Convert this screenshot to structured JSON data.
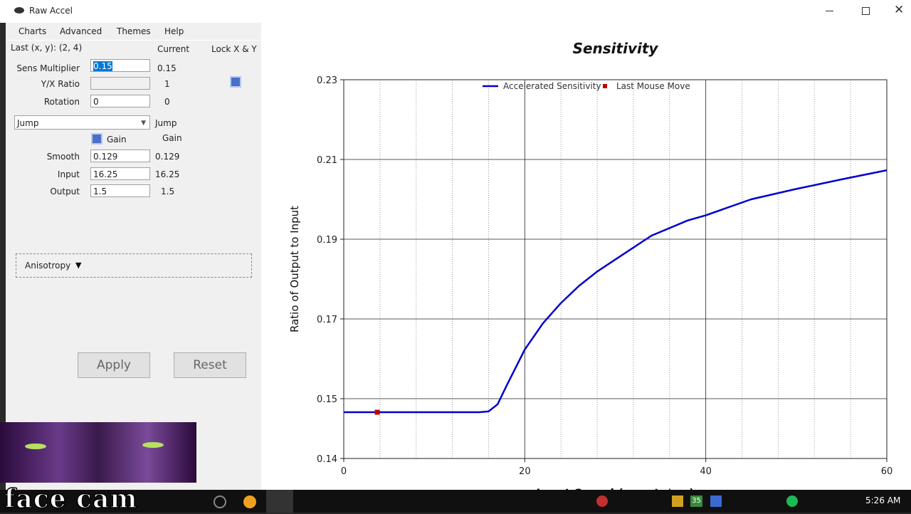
{
  "window": {
    "title": "Raw Accel"
  },
  "menu": [
    "Charts",
    "Advanced",
    "Themes",
    "Help"
  ],
  "panel": {
    "last_move": "Last (x, y): (2, 4)",
    "current_header": "Current",
    "lock_header": "Lock X & Y",
    "sens": {
      "label": "Sens Multiplier",
      "input": "0.15",
      "current": "0.15"
    },
    "ratio": {
      "label": "Y/X Ratio",
      "current": "1"
    },
    "rotation": {
      "label": "Rotation",
      "input": "0",
      "current": "0"
    },
    "mode": {
      "selected": "Jump",
      "current": "Jump"
    },
    "gain": {
      "label": "Gain",
      "current": "Gain"
    },
    "smooth": {
      "label": "Smooth",
      "input": "0.129",
      "current": "0.129"
    },
    "input": {
      "label": "Input",
      "input": "16.25",
      "current": "16.25"
    },
    "output": {
      "label": "Output",
      "input": "1.5",
      "current": "1.5"
    },
    "anisotropy": "Anisotropy",
    "buttons": [
      "Apply",
      "Reset"
    ]
  },
  "chart_data": {
    "type": "line",
    "title": "Sensitivity",
    "xlabel": "Input Speed (counts/ms)",
    "ylabel": "Ratio of Output to Input",
    "series": [
      {
        "name": "Accelerated Sensitivity",
        "color": "#0000cd",
        "x": [
          0,
          15,
          16,
          17,
          18,
          20,
          22,
          24,
          26,
          28,
          30,
          34,
          38,
          40,
          45,
          50,
          55,
          60
        ],
        "values": [
          0.1466,
          0.1466,
          0.1468,
          0.1486,
          0.1533,
          0.1623,
          0.1689,
          0.174,
          0.1783,
          0.1819,
          0.1849,
          0.1909,
          0.1947,
          0.196,
          0.2,
          0.2026,
          0.205,
          0.2073
        ]
      },
      {
        "name": "Last Mouse Move",
        "color": "#c00000",
        "marker": "square",
        "x": [
          3.7
        ],
        "values": [
          0.1466
        ]
      }
    ],
    "xlim": [
      0,
      60
    ],
    "xticks": [
      0,
      20,
      40,
      60
    ],
    "xminorticks": [
      4,
      8,
      12,
      16,
      24,
      28,
      32,
      36,
      44,
      48,
      52,
      56
    ],
    "ylim": [
      0.135,
      0.23
    ],
    "yticks": [
      {
        "value": 0.135,
        "label": "0.14"
      },
      0.15,
      0.17,
      0.19,
      0.21,
      0.23
    ],
    "grid": true,
    "legend": "top"
  },
  "overlay": {
    "caption": "face cam"
  },
  "taskbar": {
    "badge": "35",
    "clock": "5:26 AM"
  }
}
